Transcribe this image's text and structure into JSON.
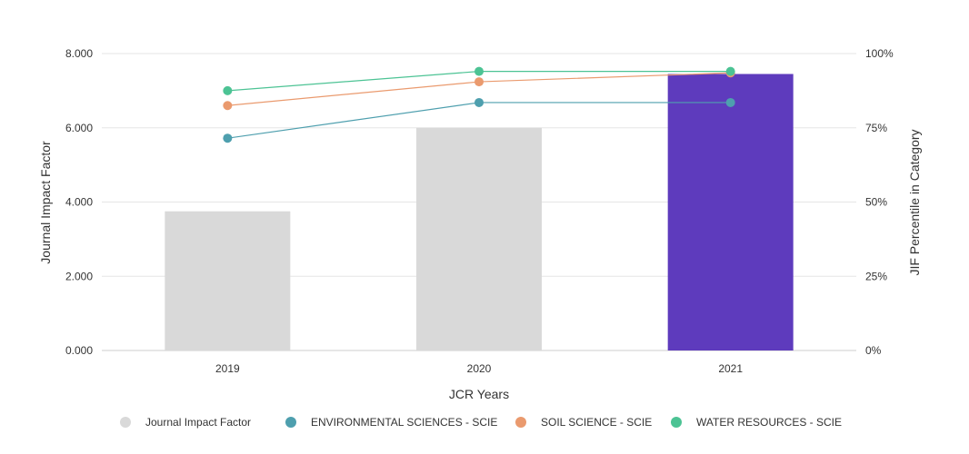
{
  "colors": {
    "bar_default": "#d9d9d9",
    "bar_highlight": "#5e3bbd",
    "grid": "#e6e6e6",
    "axis": "#cccccc"
  },
  "chart_data": {
    "type": "bar",
    "categories": [
      "2019",
      "2020",
      "2021"
    ],
    "xlabel": "JCR Years",
    "ylabel": "Journal Impact Factor",
    "y2label": "JIF Percentile in Category",
    "ylim": [
      0,
      8
    ],
    "y2lim": [
      0,
      100
    ],
    "yticks": [
      "0.000",
      "2.000",
      "4.000",
      "6.000",
      "8.000"
    ],
    "y2ticks": [
      "0%",
      "25%",
      "50%",
      "75%",
      "100%"
    ],
    "grid": true,
    "legend_position": "bottom",
    "series": [
      {
        "name": "Journal Impact Factor",
        "kind": "bar",
        "axis": "left",
        "values": [
          3.75,
          6.0,
          7.45
        ],
        "color": "#d9d9d9"
      },
      {
        "name": "ENVIRONMENTAL SCIENCES - SCIE",
        "kind": "line",
        "axis": "right",
        "values": [
          71.5,
          83.5,
          83.5
        ],
        "color": "#4e9fae"
      },
      {
        "name": "SOIL SCIENCE - SCIE",
        "kind": "line",
        "axis": "right",
        "values": [
          82.5,
          90.5,
          93.5
        ],
        "color": "#ea9a6e"
      },
      {
        "name": "WATER RESOURCES - SCIE",
        "kind": "line",
        "axis": "right",
        "values": [
          87.5,
          94.0,
          94.0
        ],
        "color": "#4cc394"
      }
    ]
  }
}
